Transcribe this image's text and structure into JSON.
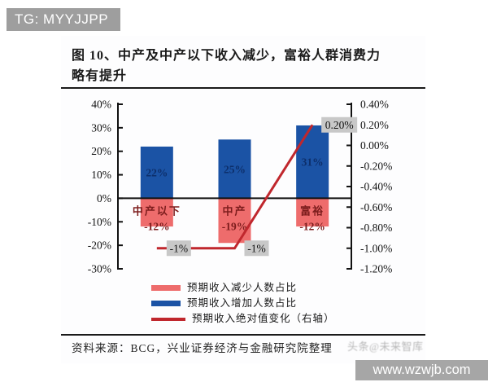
{
  "badge": {
    "text": "TG: MYYJJPP"
  },
  "figure": {
    "title_lines": [
      "图 10、中产及中产以下收入减少，富裕人群消费力",
      "略有提升"
    ],
    "source": "资料来源：BCG，兴业证券经济与金融研究院整理",
    "overlay_watermark": "头条@未来智库"
  },
  "site_watermark": {
    "text": "www.wzwjb.com"
  },
  "colors": {
    "badge_bg": "#9e9e9e",
    "axis": "#111111",
    "label_box_bg": "#c8c8c8",
    "blue_bar": "#1b53a5",
    "blue_bar_text": "#0d2f6b",
    "red_bar": "#ee6c6c",
    "red_bar_text": "#7d1d1d",
    "trend_line": "#c0272d"
  },
  "chart_data": {
    "type": "bar",
    "subtype": "dual-axis bar+line combo",
    "categories": [
      "中产以下",
      "中产",
      "富裕"
    ],
    "series": [
      {
        "name": "预期收入减少人数占比",
        "type": "bar",
        "axis": "left",
        "color": "#ee6c6c",
        "values": [
          -12,
          -19,
          -12
        ],
        "labels": [
          "-12%",
          "-19%",
          "-12%"
        ]
      },
      {
        "name": "预期收入增加人数占比",
        "type": "bar",
        "axis": "left",
        "color": "#1b53a5",
        "values": [
          22,
          25,
          31
        ],
        "labels": [
          "22%",
          "25%",
          "31%"
        ]
      },
      {
        "name": "预期收入绝对值变化（右轴）",
        "type": "line",
        "axis": "right",
        "color": "#c0272d",
        "values": [
          -1.0,
          -1.0,
          0.2
        ],
        "labels": [
          "-1%",
          "-1%",
          "0.20%"
        ]
      }
    ],
    "left_axis": {
      "min": -30,
      "max": 40,
      "step": 10,
      "tick_labels": [
        "40%",
        "30%",
        "20%",
        "10%",
        "0%",
        "-10%",
        "-20%",
        "-30%"
      ]
    },
    "right_axis": {
      "min": -1.2,
      "max": 0.4,
      "step": 0.2,
      "tick_labels": [
        "0.40%",
        "0.20%",
        "0.00%",
        "-0.20%",
        "-0.40%",
        "-0.60%",
        "-0.80%",
        "-1.00%",
        "-1.20%"
      ]
    },
    "grid": false,
    "legend_position": "bottom"
  }
}
